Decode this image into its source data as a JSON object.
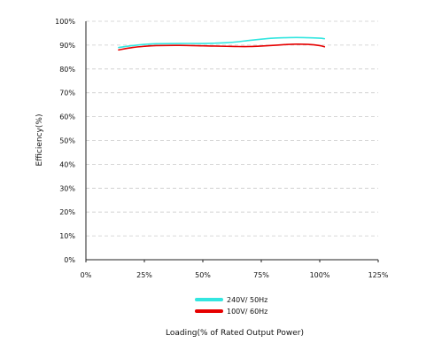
{
  "chart_data": {
    "type": "line",
    "title": "",
    "xlabel": "Loading(% of Rated Output Power)",
    "ylabel": "Efficiency(%)",
    "xlim": [
      0,
      125
    ],
    "ylim": [
      0,
      100
    ],
    "x_ticks": [
      0,
      25,
      50,
      75,
      100,
      125
    ],
    "x_tick_labels": [
      "0%",
      "25%",
      "50%",
      "75%",
      "100%",
      "125%"
    ],
    "y_ticks": [
      0,
      10,
      20,
      30,
      40,
      50,
      60,
      70,
      80,
      90,
      100
    ],
    "y_tick_labels": [
      "0%",
      "10%",
      "20%",
      "30%",
      "40%",
      "50%",
      "60%",
      "70%",
      "80%",
      "90%",
      "100%"
    ],
    "grid": "horizontal dashed",
    "legend_position": "bottom-center",
    "series": [
      {
        "name": "240V/ 50Hz",
        "color": "#33e6e0",
        "x": [
          14,
          20,
          25,
          30,
          40,
          50,
          55,
          60,
          65,
          70,
          75,
          80,
          85,
          90,
          95,
          100,
          102
        ],
        "y": [
          89.0,
          89.8,
          90.3,
          90.6,
          90.7,
          90.7,
          90.8,
          91.0,
          91.4,
          92.0,
          92.5,
          92.9,
          93.1,
          93.2,
          93.1,
          92.9,
          92.7
        ]
      },
      {
        "name": "100V/ 60Hz",
        "color": "#e60000",
        "x": [
          14,
          20,
          25,
          30,
          40,
          50,
          55,
          60,
          65,
          70,
          75,
          80,
          85,
          90,
          95,
          100,
          102
        ],
        "y": [
          88.0,
          89.0,
          89.5,
          89.8,
          89.9,
          89.7,
          89.6,
          89.5,
          89.4,
          89.4,
          89.6,
          89.9,
          90.2,
          90.4,
          90.3,
          89.8,
          89.3
        ]
      }
    ]
  }
}
